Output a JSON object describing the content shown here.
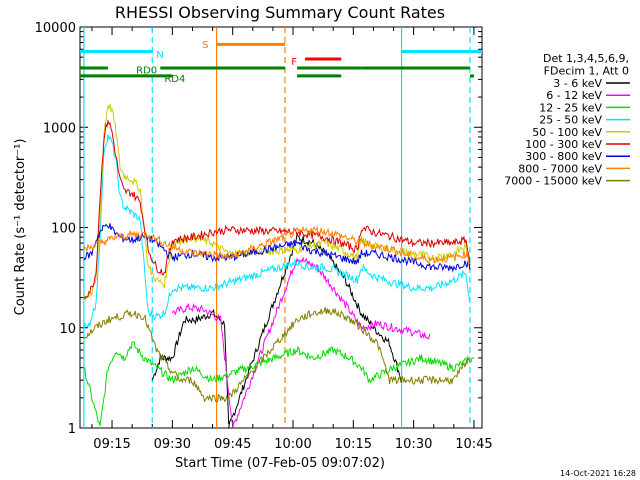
{
  "chart_data": {
    "type": "line",
    "title": "RHESSI Observing Summary Count Rates",
    "xlabel": "Start Time (07-Feb-05 09:07:02)",
    "ylabel": "Count Rate (s⁻¹ detector⁻¹)",
    "y_scale": "log",
    "ylim": [
      1,
      10000
    ],
    "xlim": [
      "09:07:02",
      "10:47:00"
    ],
    "x_ticks": [
      "09:15",
      "09:30",
      "09:45",
      "10:00",
      "10:15",
      "10:30",
      "10:45"
    ],
    "y_ticks": [
      "1",
      "10",
      "100",
      "1000",
      "10000"
    ],
    "legend_placement": "right",
    "legend_header": [
      "Det 1,3,4,5,6,9,",
      "FDecim 1, Att 0"
    ],
    "timestamp": "14-Oct-2021 16:28",
    "series": [
      {
        "name": "3 - 6 keV",
        "color": "#000000",
        "x": [
          "09:25",
          "09:27",
          "09:30",
          "09:33",
          "09:36",
          "09:40",
          "09:43",
          "09:44",
          "10:01",
          "10:05",
          "10:09",
          "10:13",
          "10:17",
          "10:20",
          "10:24",
          "10:27"
        ],
        "values": [
          3,
          5,
          5,
          12,
          12,
          14,
          11,
          1,
          80,
          70,
          50,
          30,
          14,
          10,
          7,
          3
        ]
      },
      {
        "name": "6 - 12 keV",
        "color": "#ff00ff",
        "x": [
          "09:30",
          "09:34",
          "09:38",
          "09:42",
          "09:45",
          "10:01",
          "10:06",
          "10:10",
          "10:14",
          "10:17",
          "10:21",
          "10:25",
          "10:30",
          "10:34"
        ],
        "values": [
          14,
          16,
          15,
          12,
          1,
          50,
          40,
          25,
          15,
          10,
          11,
          10,
          9,
          8
        ]
      },
      {
        "name": "12 - 25 keV",
        "color": "#00dd00",
        "x": [
          "09:08",
          "09:10",
          "09:12",
          "09:14",
          "09:16",
          "09:18",
          "09:20",
          "09:23",
          "09:26",
          "09:30",
          "09:35",
          "09:40",
          "10:01",
          "10:05",
          "10:10",
          "10:14",
          "10:17",
          "10:19",
          "10:25",
          "10:32",
          "10:40",
          "10:45"
        ],
        "values": [
          4,
          2,
          1,
          4,
          6,
          5,
          7,
          5,
          4,
          3,
          4,
          3,
          6,
          5,
          6,
          5,
          4,
          3,
          4,
          5,
          4,
          5
        ]
      },
      {
        "name": "25 - 50 keV",
        "color": "#00e5ff",
        "x": [
          "09:08",
          "09:09",
          "09:10",
          "09:11",
          "09:12",
          "09:13",
          "09:14",
          "09:15",
          "09:16",
          "09:17",
          "09:18",
          "09:20",
          "09:22",
          "09:24",
          "09:26",
          "09:28",
          "09:30",
          "09:35",
          "09:40",
          "09:44",
          "10:01",
          "10:04",
          "10:08",
          "10:12",
          "10:16",
          "10:17",
          "10:20",
          "10:25",
          "10:30",
          "10:35",
          "10:40",
          "10:43",
          "10:44"
        ],
        "values": [
          10,
          11,
          12,
          18,
          80,
          600,
          820,
          700,
          450,
          200,
          160,
          140,
          120,
          14,
          13,
          14,
          25,
          25,
          25,
          28,
          45,
          40,
          40,
          35,
          30,
          40,
          33,
          28,
          25,
          25,
          30,
          35,
          18
        ]
      },
      {
        "name": "50 - 100 keV",
        "color": "#cccc00",
        "x": [
          "09:08",
          "09:10",
          "09:11",
          "09:12",
          "09:13",
          "09:14",
          "09:15",
          "09:16",
          "09:17",
          "09:18",
          "09:20",
          "09:22",
          "09:24",
          "09:26",
          "09:28",
          "09:30",
          "09:35",
          "09:40",
          "09:44",
          "10:01",
          "10:04",
          "10:08",
          "10:12",
          "10:16",
          "10:17",
          "10:20",
          "10:25",
          "10:30",
          "10:35",
          "10:40",
          "10:43",
          "10:44"
        ],
        "values": [
          20,
          22,
          30,
          120,
          900,
          1700,
          1500,
          900,
          400,
          330,
          300,
          240,
          40,
          30,
          27,
          70,
          80,
          70,
          55,
          60,
          65,
          70,
          60,
          50,
          75,
          65,
          60,
          55,
          50,
          55,
          65,
          35
        ]
      },
      {
        "name": "100 - 300 keV",
        "color": "#dd0000",
        "x": [
          "09:08",
          "09:10",
          "09:11",
          "09:12",
          "09:13",
          "09:14",
          "09:15",
          "09:16",
          "09:17",
          "09:18",
          "09:20",
          "09:22",
          "09:24",
          "09:26",
          "09:28",
          "09:30",
          "09:35",
          "09:40",
          "09:44",
          "10:01",
          "10:04",
          "10:08",
          "10:12",
          "10:16",
          "10:17",
          "10:20",
          "10:25",
          "10:30",
          "10:35",
          "10:40",
          "10:43",
          "10:44"
        ],
        "values": [
          20,
          25,
          35,
          200,
          800,
          1200,
          900,
          500,
          300,
          230,
          220,
          180,
          60,
          40,
          35,
          75,
          80,
          90,
          95,
          90,
          85,
          80,
          70,
          60,
          100,
          90,
          80,
          70,
          70,
          70,
          75,
          45
        ]
      },
      {
        "name": "300 - 800 keV",
        "color": "#0000dd",
        "x": [
          "09:08",
          "09:10",
          "09:11",
          "09:12",
          "09:13",
          "09:14",
          "09:15",
          "09:17",
          "09:20",
          "09:22",
          "09:24",
          "09:26",
          "09:28",
          "09:30",
          "09:35",
          "09:40",
          "09:44",
          "10:01",
          "10:04",
          "10:08",
          "10:12",
          "10:16",
          "10:17",
          "10:20",
          "10:25",
          "10:30",
          "10:35",
          "10:40",
          "10:43",
          "10:44"
        ],
        "values": [
          50,
          55,
          75,
          90,
          100,
          110,
          95,
          80,
          75,
          80,
          80,
          70,
          60,
          50,
          55,
          50,
          50,
          70,
          60,
          55,
          50,
          45,
          55,
          55,
          50,
          45,
          40,
          40,
          45,
          40
        ]
      },
      {
        "name": "800 - 7000 keV",
        "color": "#ff7f00",
        "x": [
          "09:08",
          "09:12",
          "09:16",
          "09:20",
          "09:24",
          "09:28",
          "09:32",
          "09:36",
          "09:40",
          "09:44",
          "10:01",
          "10:05",
          "10:09",
          "10:13",
          "10:17",
          "10:21",
          "10:25",
          "10:30",
          "10:35",
          "10:40",
          "10:43",
          "10:44"
        ],
        "values": [
          60,
          70,
          80,
          85,
          85,
          70,
          60,
          55,
          55,
          50,
          90,
          95,
          90,
          80,
          70,
          65,
          60,
          50,
          48,
          50,
          55,
          45
        ]
      },
      {
        "name": "7000 - 15000 keV",
        "color": "#808000",
        "x": [
          "09:08",
          "09:11",
          "09:14",
          "09:17",
          "09:20",
          "09:23",
          "09:26",
          "09:29",
          "09:32",
          "09:35",
          "09:38",
          "09:41",
          "09:44",
          "10:01",
          "10:05",
          "10:09",
          "10:13",
          "10:17",
          "10:21",
          "10:24",
          "10:30",
          "10:35",
          "10:40",
          "10:44"
        ],
        "values": [
          8,
          10,
          12,
          13,
          14,
          13,
          6,
          4,
          3,
          3,
          2,
          2,
          2,
          12,
          14,
          15,
          13,
          10,
          7,
          3,
          3,
          3,
          3,
          5
        ]
      }
    ],
    "state_bars": [
      {
        "label": "N",
        "color": "#00e5ff",
        "y": 5700,
        "segments": [
          [
            "09:07:02",
            "09:25"
          ],
          [
            "10:27",
            "10:47"
          ]
        ]
      },
      {
        "label": "S",
        "color": "#ff7f00",
        "y": 6700,
        "segments": [
          [
            "09:41",
            "09:58"
          ]
        ]
      },
      {
        "label": "F",
        "color": "#ff0000",
        "y": 4800,
        "segments": [
          [
            "10:03",
            "10:12"
          ]
        ]
      },
      {
        "label": "RD0",
        "color": "#008000",
        "y": 3900,
        "segments": [
          [
            "09:07:02",
            "09:14"
          ],
          [
            "09:27",
            "09:58"
          ],
          [
            "10:01",
            "10:17"
          ],
          [
            "10:17",
            "10:44"
          ]
        ]
      },
      {
        "label": "RD4",
        "color": "#008000",
        "y": 3250,
        "segments": [
          [
            "09:07:02",
            "09:30"
          ],
          [
            "10:01",
            "10:12"
          ],
          [
            "10:44",
            "10:45"
          ]
        ]
      }
    ],
    "vertical_markers": [
      {
        "x": "09:08",
        "color": "#00e5ff",
        "style": "solid"
      },
      {
        "x": "09:25",
        "color": "#00e5ff",
        "style": "dashed"
      },
      {
        "x": "09:41",
        "color": "#ff7f00",
        "style": "solid"
      },
      {
        "x": "09:58",
        "color": "#ff7f00",
        "style": "dashed"
      },
      {
        "x": "10:27",
        "color": "#00e5ff",
        "style": "solid"
      },
      {
        "x": "10:44",
        "color": "#00e5ff",
        "style": "dashed"
      }
    ],
    "data_gaps": [
      [
        "09:44",
        "10:00"
      ]
    ]
  }
}
